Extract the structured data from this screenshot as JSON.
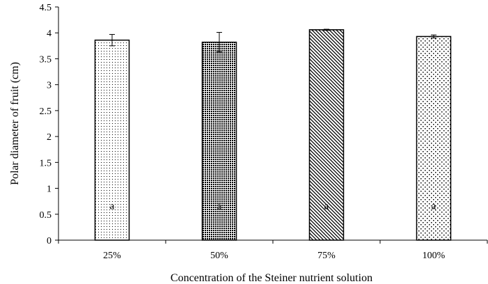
{
  "chart_data": {
    "type": "bar",
    "categories": [
      "25%",
      "50%",
      "75%",
      "100%"
    ],
    "values": [
      3.86,
      3.82,
      4.06,
      3.93
    ],
    "errors": [
      0.11,
      0.19,
      0.01,
      0.03
    ],
    "letters": [
      "a",
      "a",
      "a",
      "a"
    ],
    "patterns": [
      "dots-fine",
      "dots-dense",
      "diagonal",
      "dots-sparse"
    ],
    "ylim": [
      0,
      4.5
    ],
    "yticks": [
      "0",
      "0.5",
      "1",
      "1.5",
      "2",
      "2.5",
      "3",
      "3.5",
      "4",
      "4.5"
    ],
    "xlabel": "Concentration of the Steiner nutrient solution",
    "ylabel": "Polar diameter of fruit (cm)",
    "grid": false,
    "colors": {
      "bar_fill": "#ffffff",
      "ink": "#000000"
    }
  }
}
